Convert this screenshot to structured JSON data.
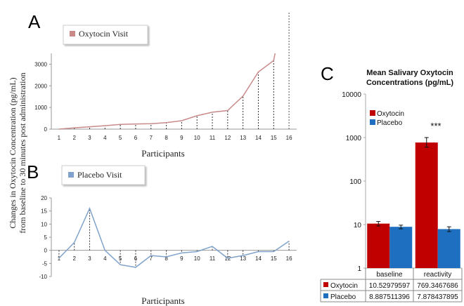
{
  "panels": {
    "a_letter": "A",
    "b_letter": "B",
    "c_letter": "C",
    "y_label_line1": "Changes in Oxytocin Concentration (pg/mL)",
    "y_label_line2": "from baseline to  30 minutes post administration",
    "x_label": "Participants"
  },
  "colors": {
    "oxytocin_line": "#c98a8a",
    "placebo_line": "#7fa3cc",
    "oxytocin_bar": "#c00000",
    "placebo_bar": "#1f6fc0",
    "axis": "#999999"
  },
  "chart_data": [
    {
      "id": "A",
      "type": "line",
      "legend": "Oxytocin Visit",
      "xlabel": "Participants",
      "categories": [
        "1",
        "2",
        "3",
        "4",
        "5",
        "6",
        "7",
        "8",
        "9",
        "10",
        "11",
        "12",
        "13",
        "14",
        "15",
        "16"
      ],
      "x": [
        1,
        2,
        3,
        4,
        5,
        6,
        7,
        8,
        9,
        10,
        11,
        12,
        13,
        14,
        15
      ],
      "values": [
        0,
        60,
        110,
        160,
        220,
        240,
        250,
        300,
        390,
        620,
        780,
        860,
        1530,
        2640,
        3170
      ],
      "yticks": [
        0,
        1000,
        2000,
        3000
      ],
      "ylim": [
        0,
        3500
      ]
    },
    {
      "id": "B",
      "type": "line",
      "legend": "Placebo Visit",
      "xlabel": "Participants",
      "categories": [
        "1",
        "2",
        "3",
        "4",
        "5",
        "6",
        "7",
        "8",
        "9",
        "10",
        "11",
        "12",
        "13",
        "14",
        "15",
        "16"
      ],
      "x": [
        1,
        2,
        3,
        4,
        5,
        6,
        7,
        8,
        9,
        10,
        11,
        12,
        13,
        14,
        15,
        16
      ],
      "values": [
        -3,
        3,
        16,
        0,
        -5.5,
        -6.5,
        -2,
        -2.5,
        -1,
        -0.5,
        1.5,
        -3,
        -2,
        -0.5,
        -0.5,
        3.5
      ],
      "yticks": [
        -10,
        -5,
        0,
        5,
        10,
        15,
        20
      ],
      "ylim": [
        -10,
        20
      ]
    },
    {
      "id": "C",
      "type": "bar",
      "title_line1": "Mean Salivary Oxytocin",
      "title_line2": "Concentrations (pg/mL)",
      "categories": [
        "baseline",
        "reactivity"
      ],
      "scale": "log",
      "ylim": [
        1,
        10000
      ],
      "yticks": [
        "1",
        "10",
        "100",
        "1000",
        "10000"
      ],
      "annotation": "***",
      "series": [
        {
          "name": "Oxytocin",
          "values": [
            10.52979597,
            769.3467686
          ],
          "error_low": [
            9.3,
            600
          ],
          "error_high": [
            11.8,
            1000
          ],
          "labels": [
            "10.52979597",
            "769.3467686"
          ]
        },
        {
          "name": "Placebo",
          "values": [
            8.887511396,
            7.878437895
          ],
          "error_low": [
            8.0,
            6.9
          ],
          "error_high": [
            9.7,
            8.9
          ],
          "labels": [
            "8.887511396",
            "7.878437895"
          ]
        }
      ]
    }
  ]
}
